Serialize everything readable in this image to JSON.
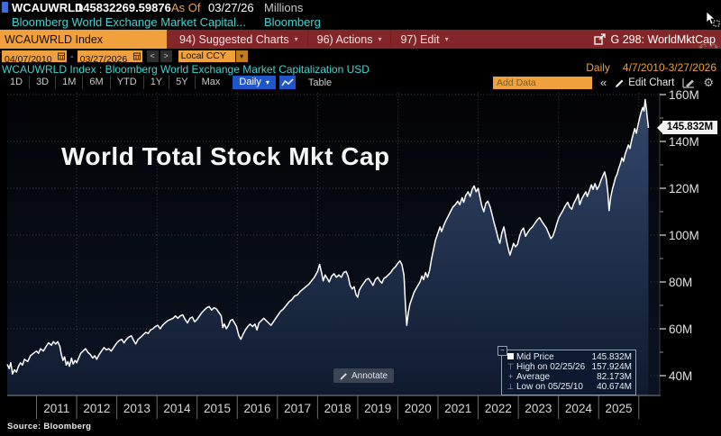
{
  "icons": {
    "caret_down": "▾",
    "chevron_left": "<",
    "chevron_right": ">",
    "collapse": "«",
    "gear": "⚙",
    "undo": "↶",
    "redo": "↷",
    "expander_minus": "−",
    "high_whisker": "⊤",
    "average_cross": "+",
    "low_whisker": "⊥"
  },
  "header": {
    "ticker": "WCAUWRLD",
    "value": "145832269.59876",
    "as_of_label": "As Of",
    "as_of_date": "03/27/26",
    "units": "Millions",
    "description": "Bloomberg World Exchange Market Capital...",
    "brand": "Bloomberg"
  },
  "toolbar": {
    "security_field": "WCAUWRLD Index",
    "menus": [
      {
        "label": "94) Suggested Charts"
      },
      {
        "label": "96) Actions"
      },
      {
        "label": "97) Edit"
      }
    ],
    "chart_tag": "G 298: WorldMktCap"
  },
  "controls": {
    "date_from": "04/07/2010",
    "date_to": "03/27/2026",
    "range_separator": "-",
    "currency": "Local CCY"
  },
  "security_line": {
    "text": "WCAUWRLD Index : Bloomberg World Exchange Market Capitalization USD",
    "frequency": "Daily",
    "range": "4/7/2010-3/27/2026"
  },
  "tabs": {
    "periods": [
      "1D",
      "3D",
      "1M",
      "6M",
      "YTD",
      "1Y",
      "5Y",
      "Max"
    ],
    "frequency_selector": "Daily",
    "table_label": "Table",
    "add_data_placeholder": "Add Data",
    "edit_chart": "Edit Chart"
  },
  "chart": {
    "title": "World Total Stock Mkt Cap",
    "annotate_label": "Annotate",
    "last_price_label": "145.832M",
    "source": "Source: Bloomberg",
    "legend_rows": [
      {
        "marker": "series-square",
        "label": "Mid Price",
        "value": "145.832M"
      },
      {
        "marker": "high-whisker",
        "label": "High on 02/25/26",
        "value": "157.924M"
      },
      {
        "marker": "average-cross",
        "label": "Average",
        "value": "82.173M"
      },
      {
        "marker": "low-whisker",
        "label": "Low on 05/25/10",
        "value": "40.674M"
      }
    ]
  },
  "chart_data": {
    "type": "area",
    "title": "World Total Stock Mkt Cap",
    "series_name": "Mid Price",
    "units": "Millions USD",
    "x_range": [
      2010.27,
      2026.24
    ],
    "ylim": [
      32,
      162
    ],
    "grid": true,
    "y_ticks": [
      {
        "v": 40,
        "label": "40M"
      },
      {
        "v": 60,
        "label": "60M"
      },
      {
        "v": 80,
        "label": "80M"
      },
      {
        "v": 100,
        "label": "100M"
      },
      {
        "v": 120,
        "label": "120M"
      },
      {
        "v": 140,
        "label": "140M"
      },
      {
        "v": 160,
        "label": "160M"
      }
    ],
    "y_minor_ticks": [
      50,
      70,
      90,
      110,
      130,
      150
    ],
    "x_tick_years": [
      2011,
      2012,
      2013,
      2014,
      2015,
      2016,
      2017,
      2018,
      2019,
      2020,
      2021,
      2022,
      2023,
      2024,
      2025,
      2026
    ],
    "x_labels": [
      "2011",
      "2012",
      "2013",
      "2014",
      "2015",
      "2016",
      "2017",
      "2018",
      "2019",
      "2020",
      "2021",
      "2022",
      "2023",
      "2024",
      "2025"
    ],
    "x_gridline_years": [
      2012,
      2014,
      2016,
      2018,
      2020,
      2022,
      2024,
      2026
    ],
    "stats": {
      "last": 145.832,
      "high_date": "02/25/26",
      "high": 157.924,
      "average": 82.173,
      "low_date": "05/25/10",
      "low": 40.674
    },
    "points": [
      [
        2010.27,
        44.8
      ],
      [
        2010.32,
        43.0
      ],
      [
        2010.36,
        45.5
      ],
      [
        2010.4,
        40.7
      ],
      [
        2010.45,
        42.5
      ],
      [
        2010.5,
        41.5
      ],
      [
        2010.55,
        44.0
      ],
      [
        2010.6,
        45.5
      ],
      [
        2010.65,
        44.5
      ],
      [
        2010.7,
        47.0
      ],
      [
        2010.78,
        46.0
      ],
      [
        2010.85,
        48.5
      ],
      [
        2010.92,
        49.5
      ],
      [
        2011.0,
        50.5
      ],
      [
        2011.05,
        49.5
      ],
      [
        2011.1,
        51.5
      ],
      [
        2011.17,
        50.5
      ],
      [
        2011.24,
        52.5
      ],
      [
        2011.3,
        54.0
      ],
      [
        2011.37,
        53.0
      ],
      [
        2011.42,
        54.5
      ],
      [
        2011.48,
        53.5
      ],
      [
        2011.53,
        54.5
      ],
      [
        2011.58,
        52.5
      ],
      [
        2011.62,
        49.0
      ],
      [
        2011.66,
        46.5
      ],
      [
        2011.7,
        48.0
      ],
      [
        2011.74,
        44.5
      ],
      [
        2011.78,
        46.0
      ],
      [
        2011.82,
        44.0
      ],
      [
        2011.87,
        47.5
      ],
      [
        2011.91,
        45.0
      ],
      [
        2011.96,
        46.5
      ],
      [
        2012.0,
        45.5
      ],
      [
        2012.05,
        47.5
      ],
      [
        2012.1,
        49.5
      ],
      [
        2012.16,
        50.5
      ],
      [
        2012.22,
        51.5
      ],
      [
        2012.28,
        50.0
      ],
      [
        2012.34,
        49.0
      ],
      [
        2012.4,
        47.5
      ],
      [
        2012.45,
        48.5
      ],
      [
        2012.5,
        47.0
      ],
      [
        2012.56,
        49.0
      ],
      [
        2012.62,
        50.5
      ],
      [
        2012.68,
        52.0
      ],
      [
        2012.74,
        51.0
      ],
      [
        2012.8,
        51.5
      ],
      [
        2012.86,
        50.5
      ],
      [
        2012.92,
        52.0
      ],
      [
        2013.0,
        54.0
      ],
      [
        2013.06,
        55.0
      ],
      [
        2013.12,
        55.5
      ],
      [
        2013.18,
        54.0
      ],
      [
        2013.24,
        55.5
      ],
      [
        2013.3,
        56.5
      ],
      [
        2013.36,
        57.0
      ],
      [
        2013.42,
        55.0
      ],
      [
        2013.47,
        53.5
      ],
      [
        2013.53,
        55.5
      ],
      [
        2013.6,
        56.5
      ],
      [
        2013.66,
        57.5
      ],
      [
        2013.72,
        58.5
      ],
      [
        2013.78,
        58.0
      ],
      [
        2013.84,
        59.5
      ],
      [
        2013.9,
        60.0
      ],
      [
        2013.96,
        61.0
      ],
      [
        2014.02,
        61.5
      ],
      [
        2014.08,
        60.0
      ],
      [
        2014.14,
        61.5
      ],
      [
        2014.2,
        62.5
      ],
      [
        2014.27,
        63.5
      ],
      [
        2014.34,
        64.0
      ],
      [
        2014.4,
        64.5
      ],
      [
        2014.46,
        65.5
      ],
      [
        2014.52,
        64.5
      ],
      [
        2014.58,
        65.5
      ],
      [
        2014.64,
        66.0
      ],
      [
        2014.7,
        64.0
      ],
      [
        2014.76,
        62.5
      ],
      [
        2014.82,
        64.5
      ],
      [
        2014.88,
        65.0
      ],
      [
        2014.94,
        63.0
      ],
      [
        2015.0,
        64.0
      ],
      [
        2015.06,
        65.5
      ],
      [
        2015.12,
        67.0
      ],
      [
        2015.18,
        68.0
      ],
      [
        2015.24,
        69.0
      ],
      [
        2015.3,
        69.5
      ],
      [
        2015.36,
        68.0
      ],
      [
        2015.42,
        69.0
      ],
      [
        2015.48,
        68.5
      ],
      [
        2015.54,
        67.0
      ],
      [
        2015.6,
        65.5
      ],
      [
        2015.64,
        60.5
      ],
      [
        2015.68,
        62.0
      ],
      [
        2015.73,
        60.0
      ],
      [
        2015.78,
        61.5
      ],
      [
        2015.83,
        63.5
      ],
      [
        2015.88,
        64.0
      ],
      [
        2015.93,
        62.5
      ],
      [
        2015.98,
        61.0
      ],
      [
        2016.04,
        57.0
      ],
      [
        2016.09,
        55.5
      ],
      [
        2016.14,
        57.5
      ],
      [
        2016.2,
        59.5
      ],
      [
        2016.26,
        61.0
      ],
      [
        2016.32,
        62.0
      ],
      [
        2016.38,
        61.0
      ],
      [
        2016.44,
        62.0
      ],
      [
        2016.49,
        59.5
      ],
      [
        2016.54,
        62.5
      ],
      [
        2016.6,
        63.5
      ],
      [
        2016.66,
        64.5
      ],
      [
        2016.72,
        63.5
      ],
      [
        2016.78,
        62.5
      ],
      [
        2016.84,
        61.5
      ],
      [
        2016.9,
        63.0
      ],
      [
        2016.96,
        64.5
      ],
      [
        2017.02,
        66.0
      ],
      [
        2017.08,
        67.5
      ],
      [
        2017.15,
        68.5
      ],
      [
        2017.22,
        70.0
      ],
      [
        2017.29,
        71.5
      ],
      [
        2017.36,
        72.5
      ],
      [
        2017.43,
        74.0
      ],
      [
        2017.5,
        74.5
      ],
      [
        2017.57,
        76.0
      ],
      [
        2017.64,
        77.0
      ],
      [
        2017.71,
        78.0
      ],
      [
        2017.78,
        79.0
      ],
      [
        2017.85,
        80.5
      ],
      [
        2017.92,
        82.0
      ],
      [
        2018.0,
        84.5
      ],
      [
        2018.05,
        87.5
      ],
      [
        2018.1,
        84.0
      ],
      [
        2018.14,
        80.5
      ],
      [
        2018.19,
        83.0
      ],
      [
        2018.24,
        81.5
      ],
      [
        2018.29,
        80.0
      ],
      [
        2018.35,
        82.5
      ],
      [
        2018.41,
        83.5
      ],
      [
        2018.47,
        82.0
      ],
      [
        2018.53,
        83.0
      ],
      [
        2018.59,
        82.0
      ],
      [
        2018.65,
        84.0
      ],
      [
        2018.71,
        84.5
      ],
      [
        2018.76,
        82.5
      ],
      [
        2018.81,
        78.5
      ],
      [
        2018.86,
        77.0
      ],
      [
        2018.91,
        78.0
      ],
      [
        2018.96,
        74.5
      ],
      [
        2019.0,
        73.5
      ],
      [
        2019.04,
        76.5
      ],
      [
        2019.09,
        78.0
      ],
      [
        2019.15,
        79.5
      ],
      [
        2019.21,
        81.0
      ],
      [
        2019.27,
        81.5
      ],
      [
        2019.33,
        80.0
      ],
      [
        2019.38,
        78.5
      ],
      [
        2019.44,
        81.0
      ],
      [
        2019.5,
        82.0
      ],
      [
        2019.55,
        80.5
      ],
      [
        2019.6,
        79.5
      ],
      [
        2019.65,
        81.5
      ],
      [
        2019.7,
        82.0
      ],
      [
        2019.76,
        83.0
      ],
      [
        2019.82,
        84.0
      ],
      [
        2019.88,
        85.5
      ],
      [
        2019.94,
        86.5
      ],
      [
        2020.0,
        88.0
      ],
      [
        2020.05,
        89.0
      ],
      [
        2020.1,
        87.5
      ],
      [
        2020.15,
        83.0
      ],
      [
        2020.19,
        70.0
      ],
      [
        2020.22,
        61.5
      ],
      [
        2020.26,
        67.0
      ],
      [
        2020.3,
        70.5
      ],
      [
        2020.35,
        73.0
      ],
      [
        2020.4,
        75.5
      ],
      [
        2020.45,
        77.0
      ],
      [
        2020.5,
        78.5
      ],
      [
        2020.55,
        80.0
      ],
      [
        2020.6,
        82.5
      ],
      [
        2020.64,
        81.0
      ],
      [
        2020.69,
        84.0
      ],
      [
        2020.74,
        82.0
      ],
      [
        2020.79,
        85.0
      ],
      [
        2020.84,
        90.0
      ],
      [
        2020.89,
        94.0
      ],
      [
        2020.94,
        98.0
      ],
      [
        2021.0,
        101.0
      ],
      [
        2021.05,
        103.5
      ],
      [
        2021.09,
        101.5
      ],
      [
        2021.14,
        104.0
      ],
      [
        2021.19,
        106.0
      ],
      [
        2021.25,
        108.0
      ],
      [
        2021.31,
        110.0
      ],
      [
        2021.37,
        112.0
      ],
      [
        2021.43,
        113.0
      ],
      [
        2021.49,
        114.5
      ],
      [
        2021.54,
        113.0
      ],
      [
        2021.6,
        116.0
      ],
      [
        2021.64,
        114.0
      ],
      [
        2021.69,
        117.0
      ],
      [
        2021.75,
        118.5
      ],
      [
        2021.8,
        116.5
      ],
      [
        2021.85,
        119.5
      ],
      [
        2021.9,
        121.0
      ],
      [
        2021.95,
        118.5
      ],
      [
        2022.0,
        120.0
      ],
      [
        2022.04,
        116.5
      ],
      [
        2022.09,
        112.5
      ],
      [
        2022.14,
        110.0
      ],
      [
        2022.19,
        113.5
      ],
      [
        2022.24,
        114.5
      ],
      [
        2022.3,
        112.0
      ],
      [
        2022.35,
        108.5
      ],
      [
        2022.4,
        105.0
      ],
      [
        2022.45,
        102.0
      ],
      [
        2022.5,
        98.5
      ],
      [
        2022.54,
        96.5
      ],
      [
        2022.59,
        101.0
      ],
      [
        2022.64,
        103.5
      ],
      [
        2022.69,
        99.0
      ],
      [
        2022.74,
        95.0
      ],
      [
        2022.79,
        91.5
      ],
      [
        2022.83,
        93.5
      ],
      [
        2022.88,
        96.5
      ],
      [
        2022.93,
        95.0
      ],
      [
        2022.98,
        96.0
      ],
      [
        2023.03,
        99.5
      ],
      [
        2023.08,
        102.0
      ],
      [
        2023.13,
        103.0
      ],
      [
        2023.18,
        99.5
      ],
      [
        2023.23,
        101.0
      ],
      [
        2023.29,
        102.5
      ],
      [
        2023.35,
        103.5
      ],
      [
        2023.41,
        105.0
      ],
      [
        2023.47,
        106.5
      ],
      [
        2023.53,
        107.5
      ],
      [
        2023.58,
        106.0
      ],
      [
        2023.64,
        104.5
      ],
      [
        2023.7,
        103.0
      ],
      [
        2023.76,
        100.5
      ],
      [
        2023.81,
        98.5
      ],
      [
        2023.86,
        99.5
      ],
      [
        2023.91,
        102.0
      ],
      [
        2023.96,
        105.0
      ],
      [
        2024.01,
        107.5
      ],
      [
        2024.06,
        109.0
      ],
      [
        2024.11,
        110.5
      ],
      [
        2024.17,
        112.5
      ],
      [
        2024.23,
        114.0
      ],
      [
        2024.28,
        112.0
      ],
      [
        2024.33,
        111.0
      ],
      [
        2024.38,
        113.5
      ],
      [
        2024.44,
        115.5
      ],
      [
        2024.49,
        117.5
      ],
      [
        2024.53,
        113.0
      ],
      [
        2024.58,
        115.5
      ],
      [
        2024.63,
        117.0
      ],
      [
        2024.68,
        118.5
      ],
      [
        2024.72,
        116.5
      ],
      [
        2024.77,
        119.0
      ],
      [
        2024.82,
        121.5
      ],
      [
        2024.86,
        119.5
      ],
      [
        2024.91,
        122.0
      ],
      [
        2024.96,
        119.5
      ],
      [
        2025.01,
        121.0
      ],
      [
        2025.06,
        123.5
      ],
      [
        2025.11,
        125.5
      ],
      [
        2025.15,
        127.0
      ],
      [
        2025.19,
        124.0
      ],
      [
        2025.23,
        118.0
      ],
      [
        2025.26,
        110.5
      ],
      [
        2025.3,
        116.0
      ],
      [
        2025.34,
        119.5
      ],
      [
        2025.38,
        122.0
      ],
      [
        2025.42,
        124.5
      ],
      [
        2025.46,
        126.0
      ],
      [
        2025.5,
        128.5
      ],
      [
        2025.54,
        130.5
      ],
      [
        2025.58,
        133.0
      ],
      [
        2025.62,
        131.5
      ],
      [
        2025.66,
        134.5
      ],
      [
        2025.7,
        136.5
      ],
      [
        2025.74,
        138.5
      ],
      [
        2025.78,
        137.0
      ],
      [
        2025.82,
        140.5
      ],
      [
        2025.86,
        143.0
      ],
      [
        2025.9,
        145.5
      ],
      [
        2025.94,
        143.5
      ],
      [
        2025.98,
        147.0
      ],
      [
        2026.02,
        150.0
      ],
      [
        2026.06,
        152.5
      ],
      [
        2026.1,
        154.5
      ],
      [
        2026.13,
        153.0
      ],
      [
        2026.16,
        157.9
      ],
      [
        2026.19,
        154.0
      ],
      [
        2026.21,
        150.5
      ],
      [
        2026.24,
        145.8
      ]
    ]
  }
}
